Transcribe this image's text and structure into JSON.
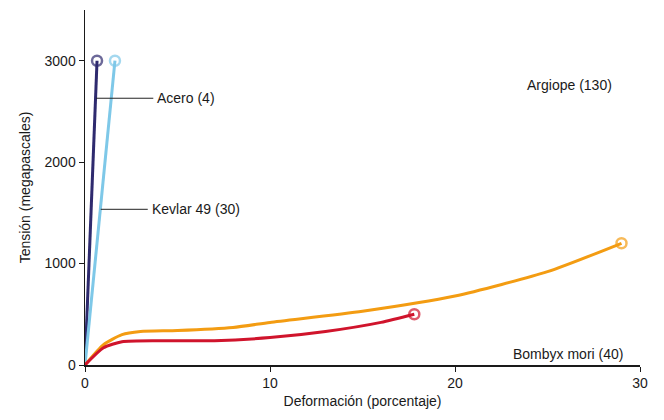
{
  "chart_data": {
    "type": "line",
    "x_label": "Deformación (porcentaje)",
    "y_label": "Tensión (megapascales)",
    "xlim": [
      0,
      30
    ],
    "xticks": [
      0,
      10,
      20,
      30
    ],
    "ylim": [
      0,
      3500
    ],
    "yticks": [
      0,
      1000,
      2000,
      3000
    ],
    "grid": false,
    "series": [
      {
        "name": "Acero (4)",
        "color": "#2e2a6e",
        "marker": "circle-open",
        "x": [
          0,
          0.65
        ],
        "values": [
          0,
          3000
        ]
      },
      {
        "name": "Kevlar 49 (30)",
        "color": "#7ec8e8",
        "marker": "circle-open",
        "x": [
          0,
          1.62
        ],
        "values": [
          0,
          3000
        ]
      },
      {
        "name": "Argiope (130)",
        "color": "#f39c12",
        "marker": "circle-open",
        "x": [
          0,
          1,
          2,
          3,
          5,
          8,
          10,
          15,
          20,
          25,
          29
        ],
        "values": [
          0,
          200,
          300,
          330,
          340,
          370,
          420,
          530,
          680,
          920,
          1200
        ]
      },
      {
        "name": "Bombyx mori (40)",
        "color": "#d0142c",
        "marker": "circle-open",
        "x": [
          0,
          1,
          2,
          4,
          7,
          10,
          13,
          16,
          17.8
        ],
        "values": [
          0,
          170,
          230,
          240,
          240,
          270,
          330,
          420,
          500
        ]
      }
    ],
    "annotations": [
      {
        "text": "Acero (4)",
        "x": 3.8,
        "y": 2630,
        "arrow_to": [
          0.6,
          2630
        ]
      },
      {
        "text": "Kevlar 49 (30)",
        "x": 3.5,
        "y": 1535,
        "arrow_to": [
          0.85,
          1535
        ]
      },
      {
        "text": "Argiope (130)",
        "x": 26.2,
        "y": 2760
      },
      {
        "text": "Bombyx mori (40)",
        "x": 26.1,
        "y": 110
      }
    ]
  }
}
